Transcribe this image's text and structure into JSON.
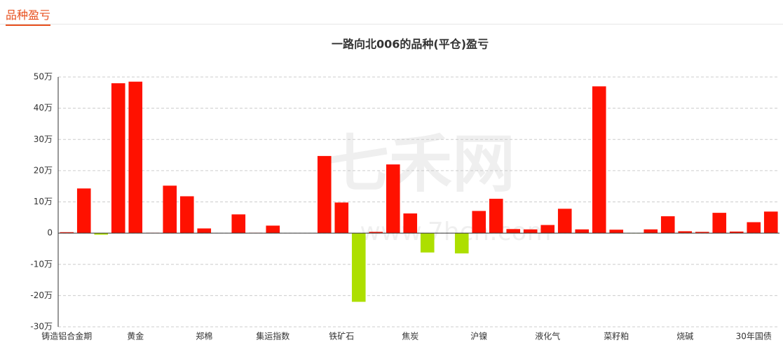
{
  "header": {
    "title": "品种盈亏"
  },
  "watermark": {
    "logo": "七禾网",
    "url": "www.7hcn.com"
  },
  "chart_data": {
    "type": "bar",
    "title": "一路向北006的品种(平仓)盈亏",
    "categories": [
      "铸造铝合金期",
      null,
      null,
      null,
      "黄金",
      null,
      null,
      null,
      "郑棉",
      null,
      null,
      null,
      "集运指数",
      null,
      null,
      null,
      "铁矿石",
      null,
      null,
      null,
      "焦炭",
      null,
      null,
      null,
      "沪镍",
      null,
      null,
      null,
      "液化气",
      null,
      null,
      null,
      "菜籽粕",
      null,
      null,
      null,
      "烧碱",
      null,
      null,
      null,
      "30年国债",
      null
    ],
    "values": [
      0.3,
      14.3,
      -0.5,
      48,
      48.5,
      0.1,
      15.2,
      11.8,
      1.5,
      0,
      6,
      0.1,
      2.4,
      0,
      0,
      24.7,
      9.8,
      -22,
      0.4,
      22,
      6.3,
      -6.2,
      0,
      -6.5,
      7.1,
      11,
      1.3,
      1.2,
      2.6,
      7.8,
      1.2,
      47,
      1.1,
      -0.1,
      1.2,
      5.4,
      0.6,
      0.4,
      6.5,
      0.5,
      3.5,
      6.9
    ],
    "positive_color": "#ff1100",
    "negative_color": "#addf00",
    "ylim": [
      -30,
      50
    ],
    "yticks": [
      {
        "value": -30,
        "label": "-30万"
      },
      {
        "value": -20,
        "label": "-20万"
      },
      {
        "value": -10,
        "label": "-10万"
      },
      0,
      {
        "value": 10,
        "label": "10万"
      },
      {
        "value": 20,
        "label": "20万"
      },
      {
        "value": 30,
        "label": "30万"
      },
      {
        "value": 40,
        "label": "40万"
      },
      {
        "value": 50,
        "label": "50万"
      }
    ],
    "grid": true
  }
}
